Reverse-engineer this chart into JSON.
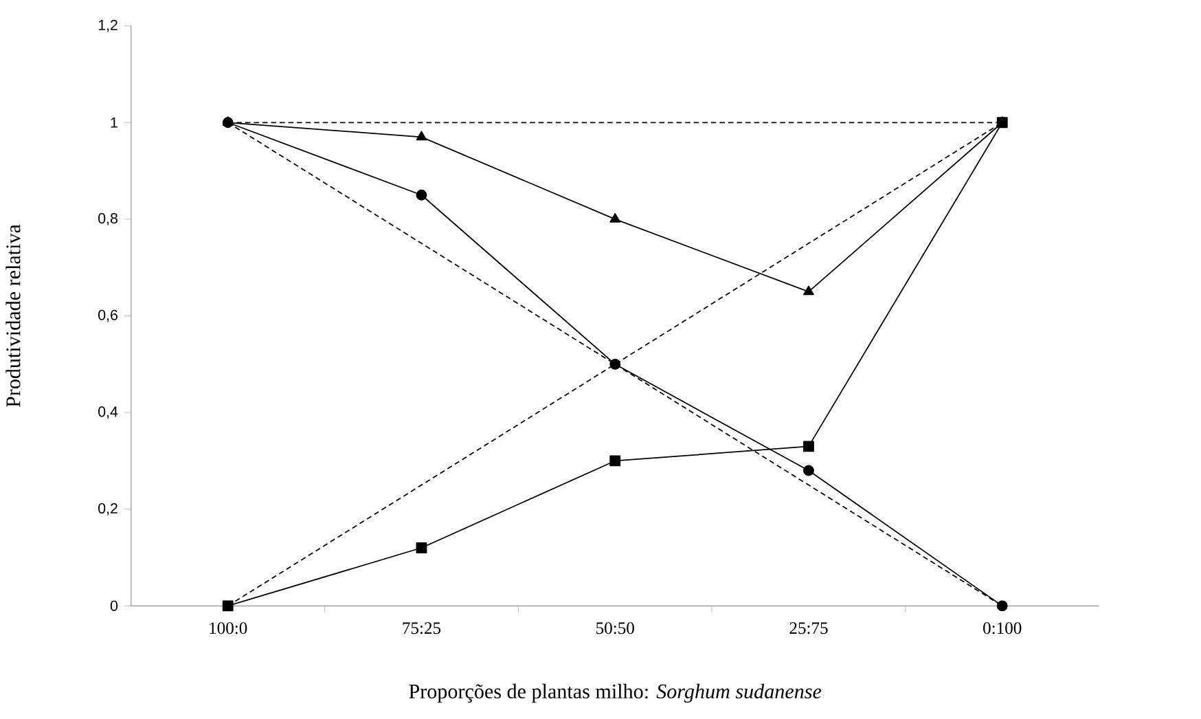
{
  "chart_data": {
    "type": "line",
    "xlabel": "Proporções de plantas milho: *Sorghum sudanense*",
    "ylabel": "Produtividade relativa",
    "categories": [
      "100:0",
      "75:25",
      "50:50",
      "25:75",
      "0:100"
    ],
    "ylim": [
      0,
      1.2
    ],
    "yticks": [
      0,
      {
        "value": 0.2,
        "label": "0,2"
      },
      {
        "value": 0.4,
        "label": "0,4"
      },
      {
        "value": 0.6,
        "label": "0,6"
      },
      {
        "value": 0.8,
        "label": "0,8"
      },
      1,
      {
        "value": 1.2,
        "label": "1,2"
      }
    ],
    "series": [
      {
        "color": "#000000",
        "values": [
          1,
          0.85,
          0.5,
          0.28,
          0
        ],
        "marker": "circle",
        "line_style": "solid"
      },
      {
        "color": "#000000",
        "values": [
          1,
          0.97,
          0.8,
          0.65,
          1
        ],
        "marker": "triangle",
        "line_style": "solid"
      },
      {
        "color": "#000000",
        "values": [
          0,
          0.12,
          0.3,
          0.33,
          1
        ],
        "marker": "square",
        "line_style": "solid"
      },
      {
        "color": "#000000",
        "values": [
          1,
          1,
          1,
          1,
          1
        ],
        "marker": "none",
        "line_style": "dashed"
      },
      {
        "color": "#000000",
        "values": [
          1,
          0.75,
          0.5,
          0.25,
          0
        ],
        "marker": "none",
        "line_style": "dashed"
      },
      {
        "color": "#000000",
        "values": [
          0,
          0.25,
          0.5,
          0.75,
          1
        ],
        "marker": "none",
        "line_style": "dashed"
      }
    ]
  }
}
